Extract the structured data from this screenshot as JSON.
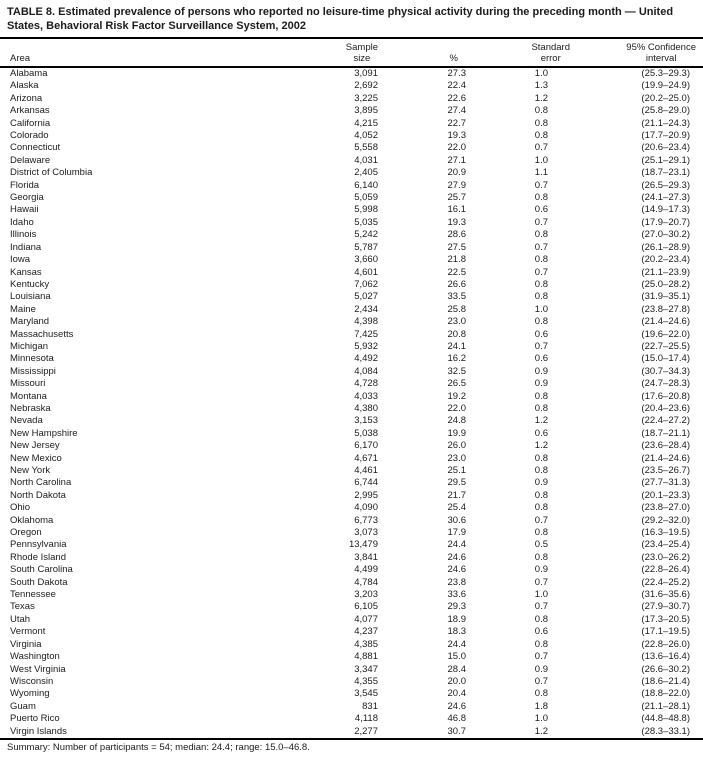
{
  "title": {
    "line1": "TABLE 8. Estimated prevalence of persons who reported no leisure-time physical activity during the preceding month — United",
    "line2": "States, Behavioral Risk Factor Surveillance System, 2002"
  },
  "table": {
    "header": {
      "area": "Area",
      "sample_line1": "Sample",
      "sample_line2": "size",
      "pct": "%",
      "se_line1": "Standard",
      "se_line2": "error",
      "ci_line1": "95% Confidence",
      "ci_line2": "interval"
    },
    "rows": [
      {
        "area": "Alabama",
        "sample_size": "3,091",
        "pct": "27.3",
        "se": "1.0",
        "ci": "(25.3–29.3)"
      },
      {
        "area": "Alaska",
        "sample_size": "2,692",
        "pct": "22.4",
        "se": "1.3",
        "ci": "(19.9–24.9)"
      },
      {
        "area": "Arizona",
        "sample_size": "3,225",
        "pct": "22.6",
        "se": "1.2",
        "ci": "(20.2–25.0)"
      },
      {
        "area": "Arkansas",
        "sample_size": "3,895",
        "pct": "27.4",
        "se": "0.8",
        "ci": "(25.8–29.0)"
      },
      {
        "area": "California",
        "sample_size": "4,215",
        "pct": "22.7",
        "se": "0.8",
        "ci": "(21.1–24.3)"
      },
      {
        "area": "Colorado",
        "sample_size": "4,052",
        "pct": "19.3",
        "se": "0.8",
        "ci": "(17.7–20.9)"
      },
      {
        "area": "Connecticut",
        "sample_size": "5,558",
        "pct": "22.0",
        "se": "0.7",
        "ci": "(20.6–23.4)"
      },
      {
        "area": "Delaware",
        "sample_size": "4,031",
        "pct": "27.1",
        "se": "1.0",
        "ci": "(25.1–29.1)"
      },
      {
        "area": "District of Columbia",
        "sample_size": "2,405",
        "pct": "20.9",
        "se": "1.1",
        "ci": "(18.7–23.1)"
      },
      {
        "area": "Florida",
        "sample_size": "6,140",
        "pct": "27.9",
        "se": "0.7",
        "ci": "(26.5–29.3)"
      },
      {
        "area": "Georgia",
        "sample_size": "5,059",
        "pct": "25.7",
        "se": "0.8",
        "ci": "(24.1–27.3)"
      },
      {
        "area": "Hawaii",
        "sample_size": "5,998",
        "pct": "16.1",
        "se": "0.6",
        "ci": "(14.9–17.3)"
      },
      {
        "area": "Idaho",
        "sample_size": "5,035",
        "pct": "19.3",
        "se": "0.7",
        "ci": "(17.9–20.7)"
      },
      {
        "area": "Illinois",
        "sample_size": "5,242",
        "pct": "28.6",
        "se": "0.8",
        "ci": "(27.0–30.2)"
      },
      {
        "area": "Indiana",
        "sample_size": "5,787",
        "pct": "27.5",
        "se": "0.7",
        "ci": "(26.1–28.9)"
      },
      {
        "area": "Iowa",
        "sample_size": "3,660",
        "pct": "21.8",
        "se": "0.8",
        "ci": "(20.2–23.4)"
      },
      {
        "area": "Kansas",
        "sample_size": "4,601",
        "pct": "22.5",
        "se": "0.7",
        "ci": "(21.1–23.9)"
      },
      {
        "area": "Kentucky",
        "sample_size": "7,062",
        "pct": "26.6",
        "se": "0.8",
        "ci": "(25.0–28.2)"
      },
      {
        "area": "Louisiana",
        "sample_size": "5,027",
        "pct": "33.5",
        "se": "0.8",
        "ci": "(31.9–35.1)"
      },
      {
        "area": "Maine",
        "sample_size": "2,434",
        "pct": "25.8",
        "se": "1.0",
        "ci": "(23.8–27.8)"
      },
      {
        "area": "Maryland",
        "sample_size": "4,398",
        "pct": "23.0",
        "se": "0.8",
        "ci": "(21.4–24.6)"
      },
      {
        "area": "Massachusetts",
        "sample_size": "7,425",
        "pct": "20.8",
        "se": "0.6",
        "ci": "(19.6–22.0)"
      },
      {
        "area": "Michigan",
        "sample_size": "5,932",
        "pct": "24.1",
        "se": "0.7",
        "ci": "(22.7–25.5)"
      },
      {
        "area": "Minnesota",
        "sample_size": "4,492",
        "pct": "16.2",
        "se": "0.6",
        "ci": "(15.0–17.4)"
      },
      {
        "area": "Mississippi",
        "sample_size": "4,084",
        "pct": "32.5",
        "se": "0.9",
        "ci": "(30.7–34.3)"
      },
      {
        "area": "Missouri",
        "sample_size": "4,728",
        "pct": "26.5",
        "se": "0.9",
        "ci": "(24.7–28.3)"
      },
      {
        "area": "Montana",
        "sample_size": "4,033",
        "pct": "19.2",
        "se": "0.8",
        "ci": "(17.6–20.8)"
      },
      {
        "area": "Nebraska",
        "sample_size": "4,380",
        "pct": "22.0",
        "se": "0.8",
        "ci": "(20.4–23.6)"
      },
      {
        "area": "Nevada",
        "sample_size": "3,153",
        "pct": "24.8",
        "se": "1.2",
        "ci": "(22.4–27.2)"
      },
      {
        "area": "New Hampshire",
        "sample_size": "5,038",
        "pct": "19.9",
        "se": "0.6",
        "ci": "(18.7–21.1)"
      },
      {
        "area": "New Jersey",
        "sample_size": "6,170",
        "pct": "26.0",
        "se": "1.2",
        "ci": "(23.6–28.4)"
      },
      {
        "area": "New Mexico",
        "sample_size": "4,671",
        "pct": "23.0",
        "se": "0.8",
        "ci": "(21.4–24.6)"
      },
      {
        "area": "New York",
        "sample_size": "4,461",
        "pct": "25.1",
        "se": "0.8",
        "ci": "(23.5–26.7)"
      },
      {
        "area": "North Carolina",
        "sample_size": "6,744",
        "pct": "29.5",
        "se": "0.9",
        "ci": "(27.7–31.3)"
      },
      {
        "area": "North Dakota",
        "sample_size": "2,995",
        "pct": "21.7",
        "se": "0.8",
        "ci": "(20.1–23.3)"
      },
      {
        "area": "Ohio",
        "sample_size": "4,090",
        "pct": "25.4",
        "se": "0.8",
        "ci": "(23.8–27.0)"
      },
      {
        "area": "Oklahoma",
        "sample_size": "6,773",
        "pct": "30.6",
        "se": "0.7",
        "ci": "(29.2–32.0)"
      },
      {
        "area": "Oregon",
        "sample_size": "3,073",
        "pct": "17.9",
        "se": "0.8",
        "ci": "(16.3–19.5)"
      },
      {
        "area": "Pennsylvania",
        "sample_size": "13,479",
        "pct": "24.4",
        "se": "0.5",
        "ci": "(23.4–25.4)"
      },
      {
        "area": "Rhode Island",
        "sample_size": "3,841",
        "pct": "24.6",
        "se": "0.8",
        "ci": "(23.0–26.2)"
      },
      {
        "area": "South Carolina",
        "sample_size": "4,499",
        "pct": "24.6",
        "se": "0.9",
        "ci": "(22.8–26.4)"
      },
      {
        "area": "South Dakota",
        "sample_size": "4,784",
        "pct": "23.8",
        "se": "0.7",
        "ci": "(22.4–25.2)"
      },
      {
        "area": "Tennessee",
        "sample_size": "3,203",
        "pct": "33.6",
        "se": "1.0",
        "ci": "(31.6–35.6)"
      },
      {
        "area": "Texas",
        "sample_size": "6,105",
        "pct": "29.3",
        "se": "0.7",
        "ci": "(27.9–30.7)"
      },
      {
        "area": "Utah",
        "sample_size": "4,077",
        "pct": "18.9",
        "se": "0.8",
        "ci": "(17.3–20.5)"
      },
      {
        "area": "Vermont",
        "sample_size": "4,237",
        "pct": "18.3",
        "se": "0.6",
        "ci": "(17.1–19.5)"
      },
      {
        "area": "Virginia",
        "sample_size": "4,385",
        "pct": "24.4",
        "se": "0.8",
        "ci": "(22.8–26.0)"
      },
      {
        "area": "Washington",
        "sample_size": "4,881",
        "pct": "15.0",
        "se": "0.7",
        "ci": "(13.6–16.4)"
      },
      {
        "area": "West Virginia",
        "sample_size": "3,347",
        "pct": "28.4",
        "se": "0.9",
        "ci": "(26.6–30.2)"
      },
      {
        "area": "Wisconsin",
        "sample_size": "4,355",
        "pct": "20.0",
        "se": "0.7",
        "ci": "(18.6–21.4)"
      },
      {
        "area": "Wyoming",
        "sample_size": "3,545",
        "pct": "20.4",
        "se": "0.8",
        "ci": "(18.8–22.0)"
      },
      {
        "area": "Guam",
        "sample_size": "831",
        "pct": "24.6",
        "se": "1.8",
        "ci": "(21.1–28.1)"
      },
      {
        "area": "Puerto Rico",
        "sample_size": "4,118",
        "pct": "46.8",
        "se": "1.0",
        "ci": "(44.8–48.8)"
      },
      {
        "area": "Virgin Islands",
        "sample_size": "2,277",
        "pct": "30.7",
        "se": "1.2",
        "ci": "(28.3–33.1)"
      }
    ]
  },
  "summary": "Summary: Number of participants = 54; median: 24.4; range: 15.0–46.8."
}
